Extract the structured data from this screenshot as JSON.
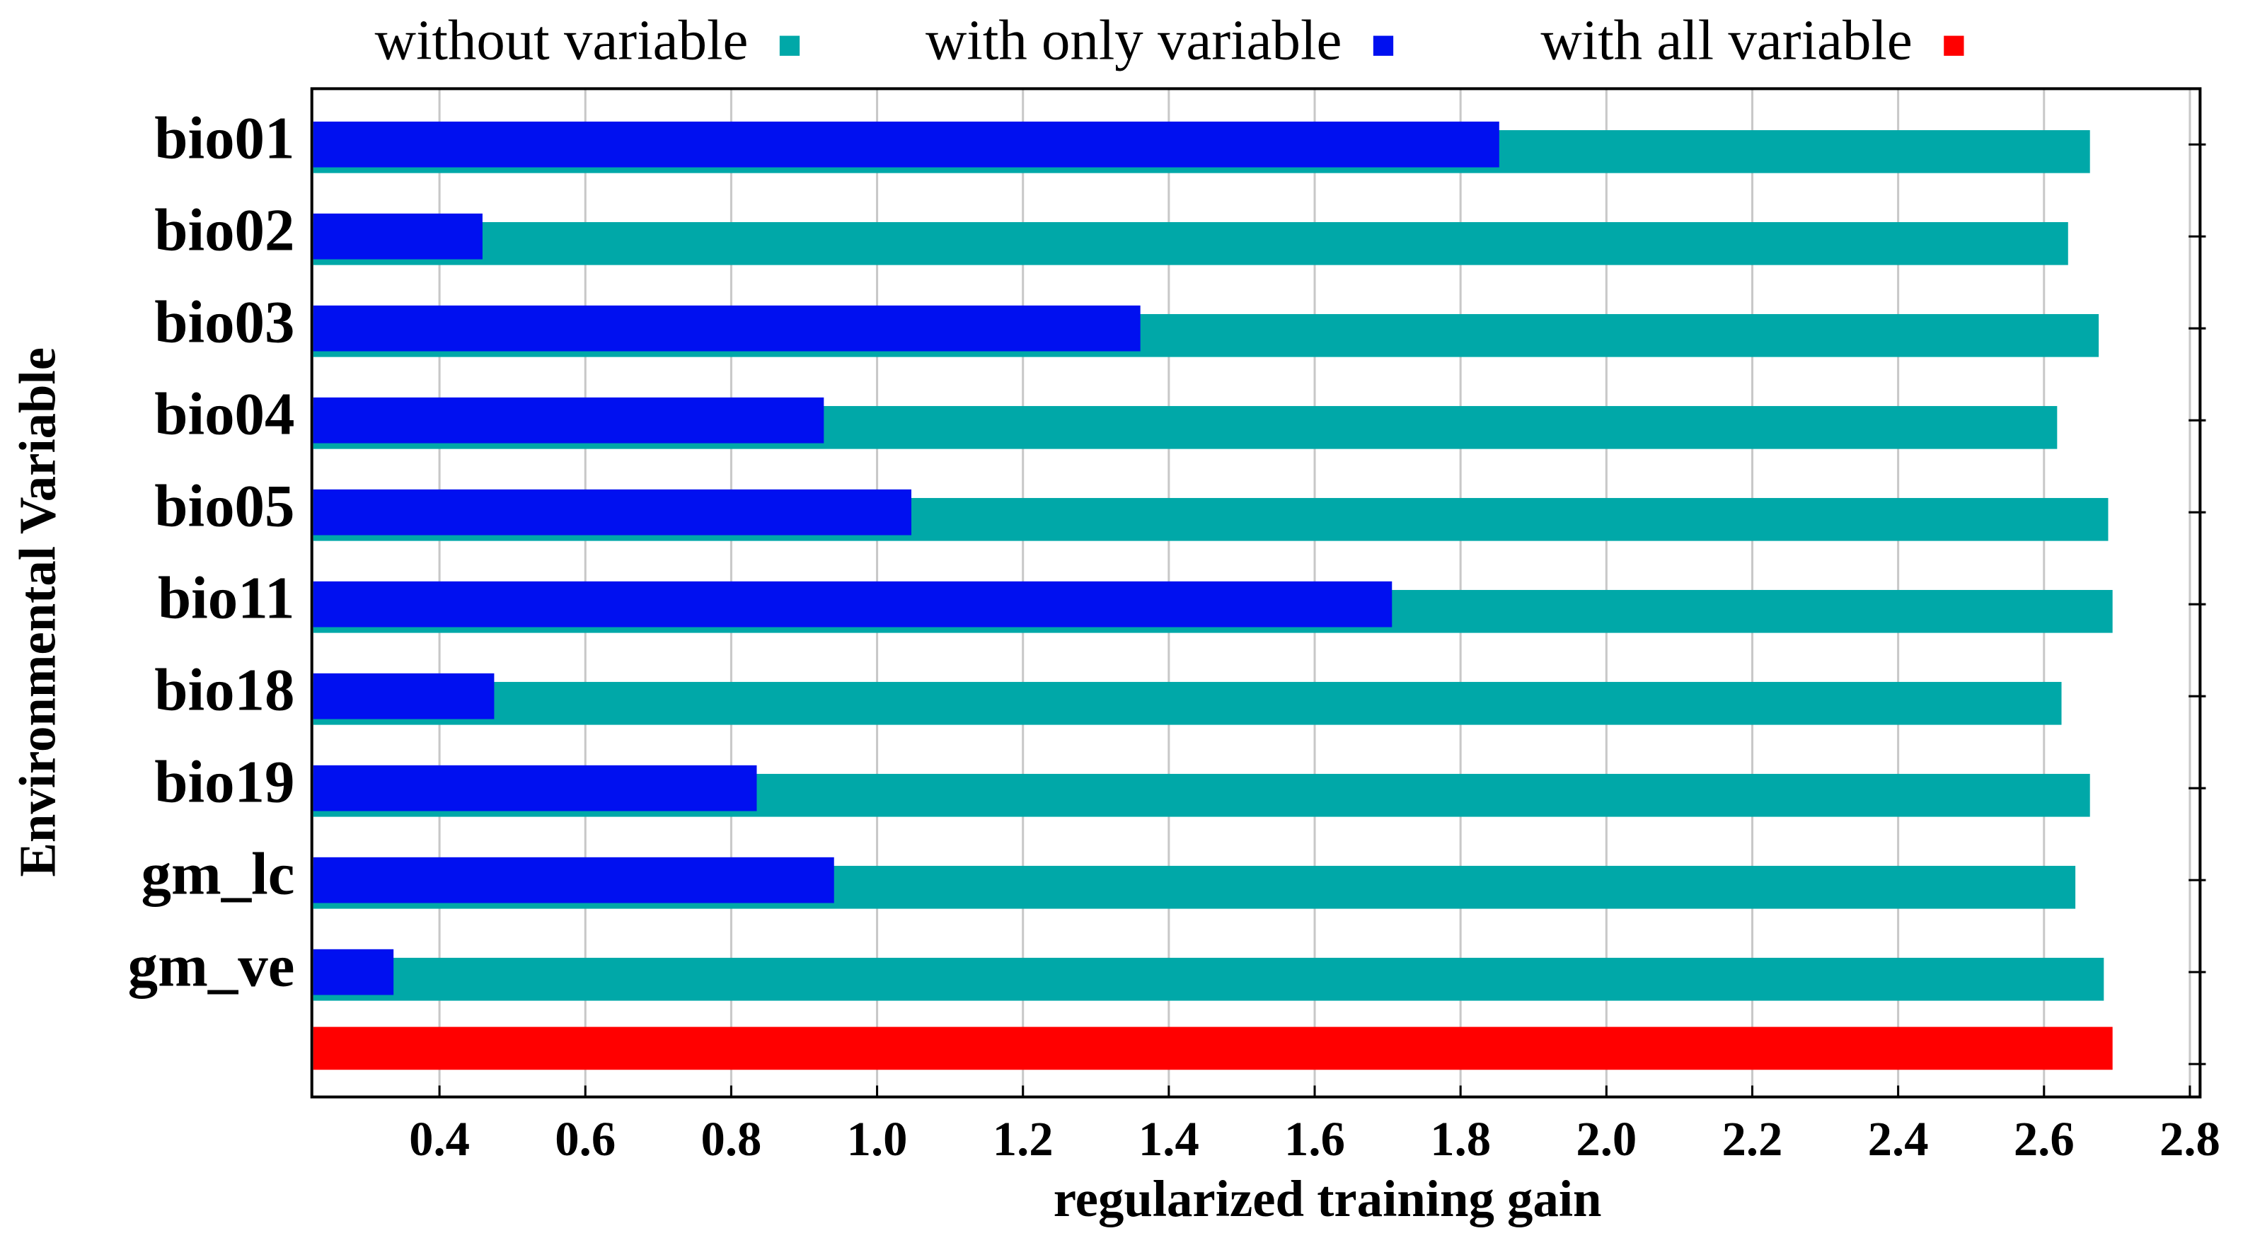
{
  "chart_data": {
    "type": "bar",
    "orientation": "horizontal",
    "x_label": "regularized training gain",
    "y_label": "Environmental Variable",
    "categories": [
      "bio01",
      "bio02",
      "bio03",
      "bio04",
      "bio05",
      "bio11",
      "bio18",
      "bio19",
      "gm_lc",
      "gm_ve",
      null
    ],
    "series": [
      {
        "name": "without variable",
        "color": "#00a8a8",
        "values": [
          2.663,
          2.633,
          2.675,
          2.618,
          2.688,
          2.694,
          2.624,
          2.663,
          2.643,
          2.682,
          null
        ]
      },
      {
        "name": "with only variable",
        "color": "#0010f0",
        "values": [
          1.853,
          0.459,
          1.361,
          0.927,
          1.047,
          1.706,
          0.475,
          0.835,
          0.941,
          0.337,
          null
        ]
      },
      {
        "name": "with all variable",
        "color": "#ff0000",
        "values": [
          null,
          null,
          null,
          null,
          null,
          null,
          null,
          null,
          null,
          null,
          2.694
        ]
      }
    ],
    "xlim": [
      0.225,
      2.814
    ],
    "xticks": [
      {
        "value": 0.4,
        "label": "0.4"
      },
      {
        "value": 0.6,
        "label": "0.6"
      },
      {
        "value": 0.8,
        "label": "0.8"
      },
      {
        "value": 1.0,
        "label": "1.0"
      },
      {
        "value": 1.2,
        "label": "1.2"
      },
      {
        "value": 1.4,
        "label": "1.4"
      },
      {
        "value": 1.6,
        "label": "1.6"
      },
      {
        "value": 1.8,
        "label": "1.8"
      },
      {
        "value": 2.0,
        "label": "2.0"
      },
      {
        "value": 2.2,
        "label": "2.2"
      },
      {
        "value": 2.4,
        "label": "2.4"
      },
      {
        "value": 2.6,
        "label": "2.6"
      },
      {
        "value": 2.8,
        "label": "2.8"
      }
    ],
    "grid": true,
    "legend": "top"
  }
}
